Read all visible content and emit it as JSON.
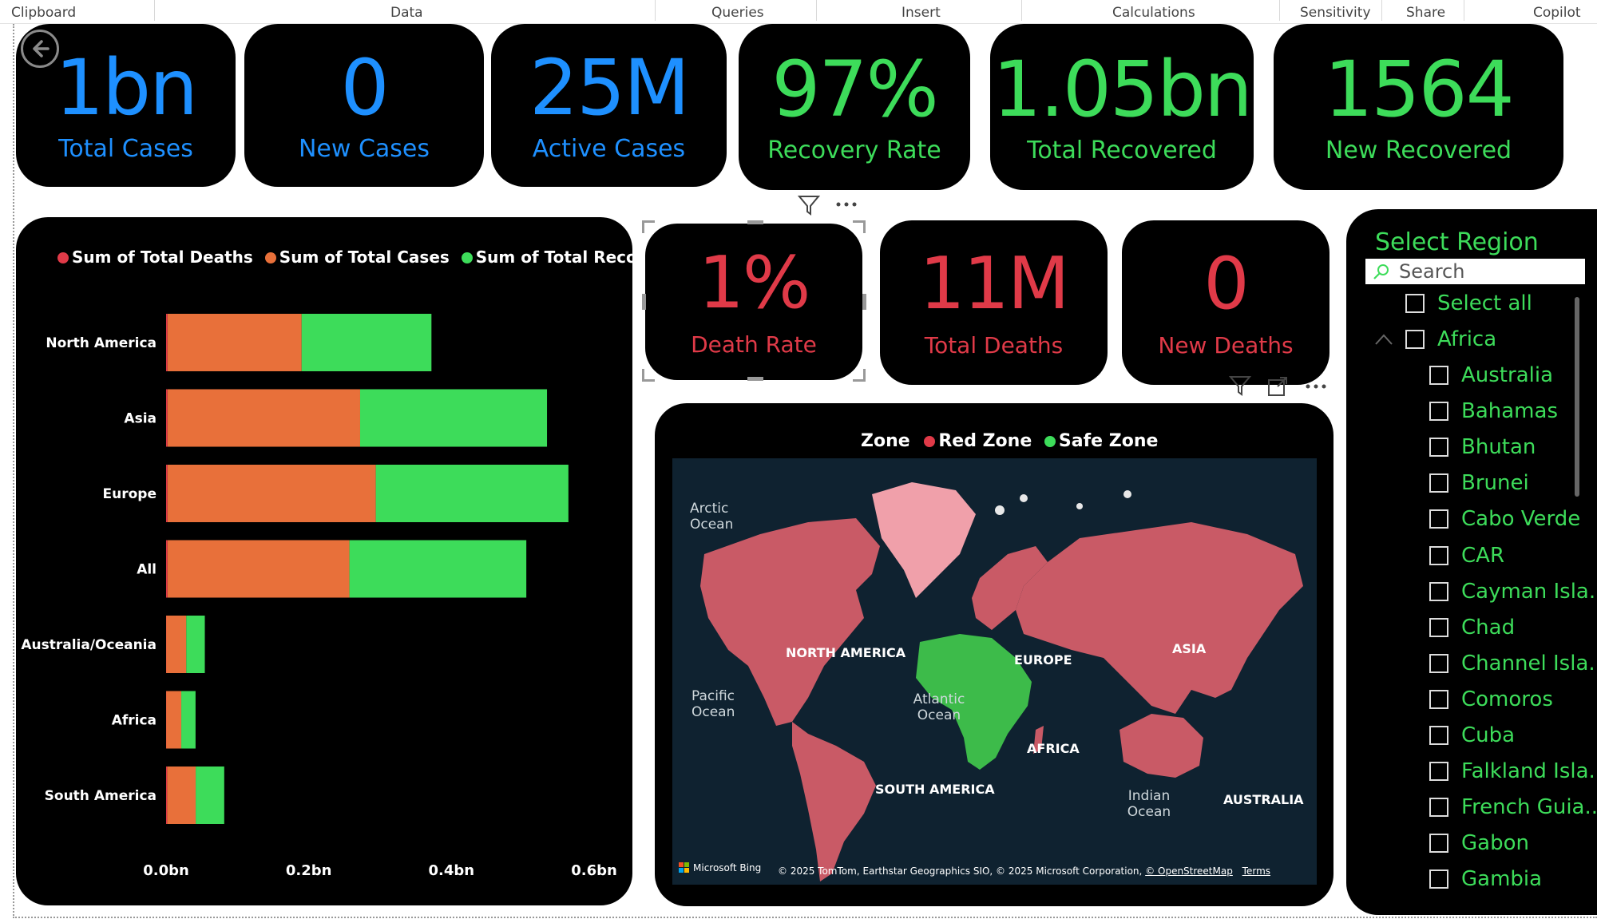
{
  "ribbon": {
    "groups": [
      "Clipboard",
      "Data",
      "Queries",
      "Insert",
      "Calculations",
      "Sensitivity",
      "Share",
      "Copilot"
    ]
  },
  "kpis_top": [
    {
      "value": "1bn",
      "label": "Total Cases",
      "color": "#1e90ff"
    },
    {
      "value": "0",
      "label": "New Cases",
      "color": "#1e90ff"
    },
    {
      "value": "25M",
      "label": "Active Cases",
      "color": "#1e90ff"
    },
    {
      "value": "97%",
      "label": "Recovery Rate",
      "color": "#3ddc5a"
    },
    {
      "value": "1.05bn",
      "label": "Total Recovered",
      "color": "#3ddc5a"
    },
    {
      "value": "1564",
      "label": "New Recovered",
      "color": "#3ddc5a"
    }
  ],
  "kpis_mid": [
    {
      "value": "1%",
      "label": "Death Rate",
      "color": "#e03a48"
    },
    {
      "value": "11M",
      "label": "Total Deaths",
      "color": "#e03a48"
    },
    {
      "value": "0",
      "label": "New Deaths",
      "color": "#e03a48"
    }
  ],
  "chart_data": {
    "type": "bar",
    "orientation": "horizontal",
    "stacked": true,
    "categories": [
      "North America",
      "Asia",
      "Europe",
      "All",
      "Australia/Oceania",
      "Africa",
      "South America"
    ],
    "series": [
      {
        "name": "Sum of Total Deaths",
        "color": "#e03a48",
        "values": [
          0.002,
          0.002,
          0.002,
          0.002,
          0.0003,
          0.0003,
          0.0015
        ]
      },
      {
        "name": "Sum of Total Cases",
        "color": "#e8703a",
        "values": [
          0.188,
          0.27,
          0.292,
          0.255,
          0.028,
          0.021,
          0.04
        ]
      },
      {
        "name": "Sum of Total Recovered",
        "color": "#3ddc5a",
        "values": [
          0.182,
          0.262,
          0.27,
          0.248,
          0.026,
          0.02,
          0.04
        ]
      }
    ],
    "xticks": [
      "0.0bn",
      "0.2bn",
      "0.4bn",
      "0.6bn"
    ],
    "xlim": [
      0,
      0.6
    ],
    "legend_position": "top"
  },
  "map": {
    "legend_title": "Zone",
    "legend_items": [
      {
        "name": "Red Zone",
        "color": "#e03a48"
      },
      {
        "name": "Safe Zone",
        "color": "#3ddc5a"
      }
    ],
    "labels": {
      "arctic": "Arctic Ocean",
      "north_america": "NORTH AMERICA",
      "europe": "EUROPE",
      "asia": "ASIA",
      "pacific": "Pacific Ocean",
      "atlantic": "Atlantic Ocean",
      "africa": "AFRICA",
      "south_america": "SOUTH AMERICA",
      "indian": "Indian Ocean",
      "australia": "AUSTRALIA"
    },
    "bing_logo": "Microsoft Bing",
    "copyright": "© 2025 TomTom, Earthstar Geographics SIO, © 2025 Microsoft Corporation,",
    "osm": "© OpenStreetMap",
    "terms": "Terms"
  },
  "slicer": {
    "title": "Select Region",
    "search_placeholder": "Search",
    "select_all": "Select all",
    "group": "Africa",
    "items": [
      "Australia",
      "Bahamas",
      "Bhutan",
      "Brunei",
      "Cabo Verde",
      "CAR",
      "Cayman Isla...",
      "Chad",
      "Channel Isla...",
      "Comoros",
      "Cuba",
      "Falkland Isla...",
      "French Guia...",
      "Gabon",
      "Gambia"
    ]
  }
}
